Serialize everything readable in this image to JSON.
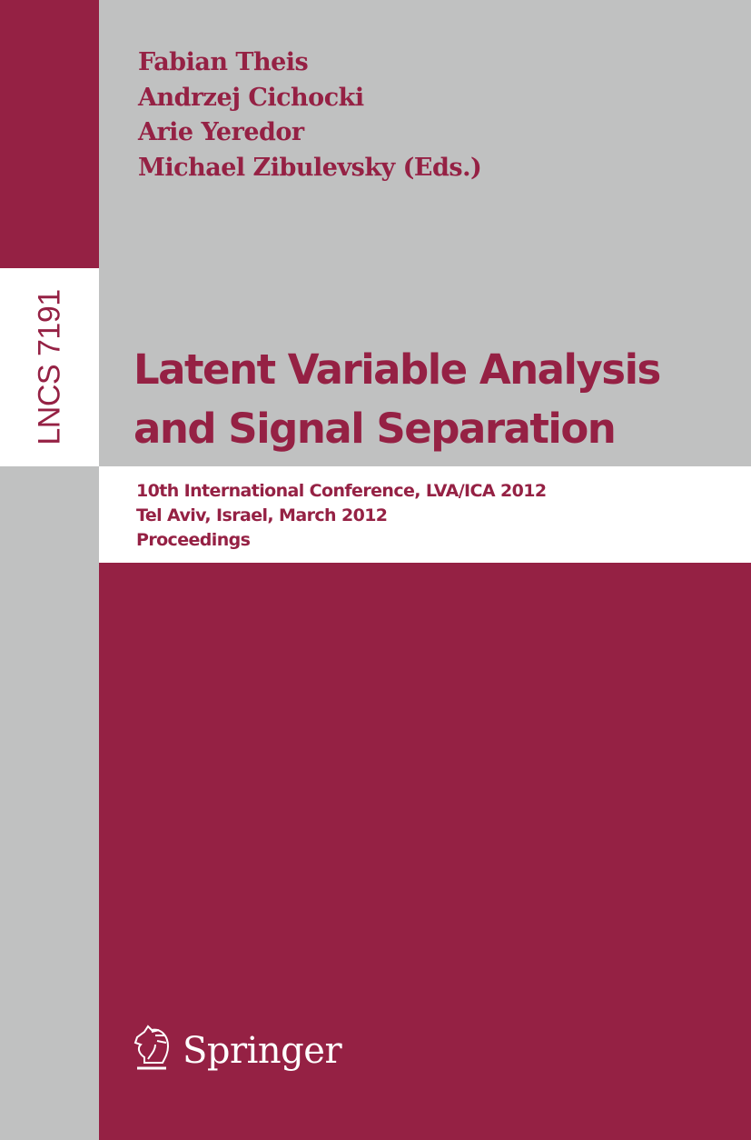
{
  "colors": {
    "crimson": "#952144",
    "gray": "#c0c1c1",
    "white": "#ffffff"
  },
  "series_label": "LNCS 7191",
  "editors": [
    "Fabian Theis",
    "Andrzej Cichocki",
    "Arie Yeredor",
    "Michael Zibulevsky (Eds.)"
  ],
  "title": [
    "Latent Variable Analysis",
    "and Signal Separation"
  ],
  "subtitle": [
    "10th International Conference, LVA/ICA 2012",
    "Tel Aviv, Israel, March 2012",
    "Proceedings"
  ],
  "publisher": {
    "name": "Springer",
    "icon": "knight-horse-icon"
  }
}
